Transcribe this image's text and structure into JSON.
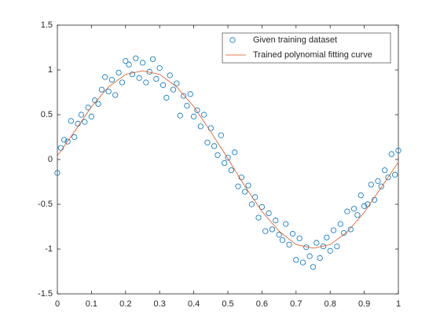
{
  "chart_data": {
    "type": "scatter-line",
    "xlim": [
      0,
      1
    ],
    "xticks": [
      0,
      0.1,
      0.2,
      0.3,
      0.4,
      0.5,
      0.6,
      0.7,
      0.8,
      0.9,
      1
    ],
    "ylim": [
      -1.5,
      1.5
    ],
    "yticks": [
      -1.5,
      -1,
      -0.5,
      0,
      0.5,
      1,
      1.5
    ],
    "grid": false,
    "legend": "northeast",
    "series": [
      {
        "name": "Given training dataset",
        "color": "#0072BD",
        "kind": "markers",
        "x": [
          0,
          0.01,
          0.02,
          0.03,
          0.04,
          0.05,
          0.06,
          0.07,
          0.08,
          0.09,
          0.1,
          0.11,
          0.12,
          0.13,
          0.14,
          0.15,
          0.16,
          0.17,
          0.18,
          0.19,
          0.2,
          0.21,
          0.22,
          0.23,
          0.24,
          0.25,
          0.26,
          0.27,
          0.28,
          0.29,
          0.3,
          0.31,
          0.32,
          0.33,
          0.34,
          0.35,
          0.36,
          0.37,
          0.38,
          0.39,
          0.4,
          0.41,
          0.42,
          0.43,
          0.44,
          0.45,
          0.46,
          0.47,
          0.48,
          0.49,
          0.5,
          0.51,
          0.52,
          0.53,
          0.54,
          0.55,
          0.56,
          0.57,
          0.58,
          0.59,
          0.6,
          0.61,
          0.62,
          0.63,
          0.64,
          0.65,
          0.66,
          0.67,
          0.68,
          0.69,
          0.7,
          0.71,
          0.72,
          0.73,
          0.74,
          0.75,
          0.76,
          0.77,
          0.78,
          0.79,
          0.8,
          0.81,
          0.82,
          0.83,
          0.84,
          0.85,
          0.86,
          0.87,
          0.88,
          0.89,
          0.9,
          0.91,
          0.92,
          0.93,
          0.94,
          0.95,
          0.96,
          0.97,
          0.98,
          0.99,
          1
        ],
        "values": [
          -0.15,
          0.13,
          0.22,
          0.2,
          0.43,
          0.25,
          0.4,
          0.5,
          0.42,
          0.58,
          0.48,
          0.66,
          0.62,
          0.78,
          0.92,
          0.76,
          0.89,
          0.72,
          0.97,
          0.86,
          1.1,
          1.06,
          0.95,
          1.13,
          0.91,
          1.08,
          0.86,
          0.98,
          1.12,
          0.9,
          1.02,
          0.83,
          0.69,
          0.94,
          0.78,
          0.85,
          0.49,
          0.71,
          0.6,
          0.73,
          0.48,
          0.55,
          0.37,
          0.5,
          0.19,
          0.35,
          0.15,
          0.05,
          0.27,
          -0.04,
          0.02,
          -0.12,
          0.08,
          -0.3,
          -0.2,
          -0.36,
          -0.29,
          -0.5,
          -0.42,
          -0.65,
          -0.53,
          -0.8,
          -0.6,
          -0.78,
          -0.68,
          -0.84,
          -0.9,
          -0.72,
          -0.95,
          -0.83,
          -1.12,
          -0.88,
          -1.15,
          -0.98,
          -1.08,
          -1.2,
          -0.93,
          -1.1,
          -0.97,
          -0.87,
          -1.02,
          -0.79,
          -0.97,
          -0.72,
          -0.82,
          -0.58,
          -0.78,
          -0.55,
          -0.62,
          -0.4,
          -0.52,
          -0.5,
          -0.28,
          -0.45,
          -0.24,
          -0.3,
          -0.12,
          -0.2,
          0.06,
          -0.17,
          0.1
        ]
      },
      {
        "name": "Trained polynomial fitting curve",
        "color": "#D95319",
        "kind": "line",
        "x": [
          0,
          0.05,
          0.1,
          0.15,
          0.2,
          0.25,
          0.3,
          0.35,
          0.4,
          0.45,
          0.5,
          0.55,
          0.6,
          0.65,
          0.7,
          0.75,
          0.8,
          0.85,
          0.9,
          0.95,
          1
        ],
        "values": [
          0.04,
          0.31,
          0.59,
          0.81,
          0.95,
          0.99,
          0.95,
          0.81,
          0.59,
          0.31,
          0.01,
          -0.3,
          -0.58,
          -0.8,
          -0.95,
          -0.99,
          -0.95,
          -0.81,
          -0.59,
          -0.31,
          -0.03
        ]
      }
    ]
  }
}
